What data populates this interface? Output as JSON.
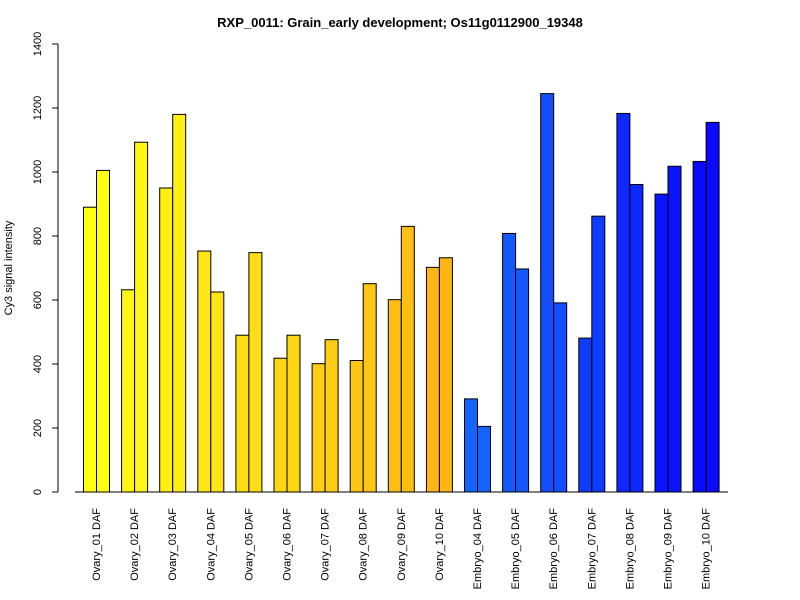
{
  "chart_data": {
    "type": "bar",
    "title": "RXP_0011: Grain_early development; Os11g0112900_19348",
    "ylabel": "Cy3 signal intensity",
    "xlabel": "",
    "ylim": [
      0,
      1400
    ],
    "yticks": [
      "0",
      "200",
      "400",
      "600",
      "800",
      "1000",
      "1200",
      "1400"
    ],
    "grid": false,
    "categories": [
      "Ovary_01 DAF",
      "Ovary_02 DAF",
      "Ovary_03 DAF",
      "Ovary_04 DAF",
      "Ovary_05 DAF",
      "Ovary_06 DAF",
      "Ovary_07 DAF",
      "Ovary_08 DAF",
      "Ovary_09 DAF",
      "Ovary_10 DAF",
      "Embryo_04 DAF",
      "Embryo_05 DAF",
      "Embryo_06 DAF",
      "Embryo_07 DAF",
      "Embryo_08 DAF",
      "Embryo_09 DAF",
      "Embryo_10 DAF"
    ],
    "series": [
      {
        "values": [
          890,
          632,
          950,
          753,
          490,
          418,
          401,
          411,
          601,
          702,
          291,
          808,
          1245,
          481,
          1183,
          931,
          1033
        ]
      },
      {
        "values": [
          1005,
          1093,
          1180,
          625,
          748,
          490,
          476,
          651,
          830,
          732,
          205,
          697,
          591,
          862,
          961,
          1018,
          1155
        ]
      }
    ],
    "colors": [
      "#FFFF14",
      "#FFF614",
      "#FFEE14",
      "#FFE614",
      "#FFDE14",
      "#FFD614",
      "#FFCE14",
      "#FFC614",
      "#FFBE14",
      "#FFB614",
      "#1464FF",
      "#1458FF",
      "#144CFF",
      "#0F3CFF",
      "#0F28FF",
      "#0A14FF",
      "#0A0AFF"
    ]
  }
}
